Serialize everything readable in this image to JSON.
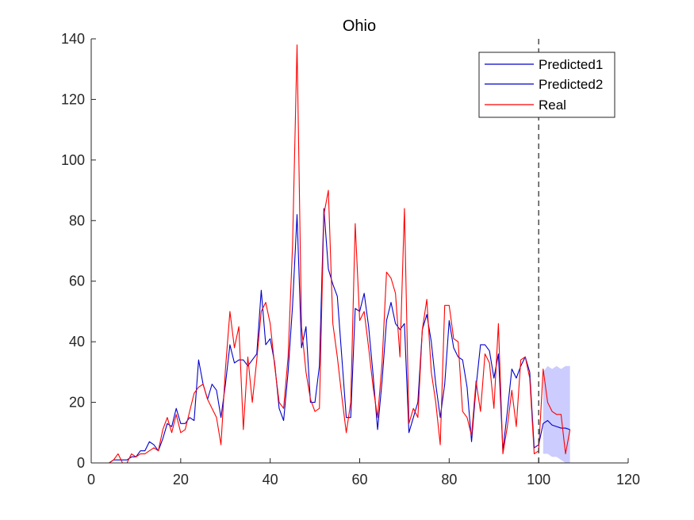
{
  "chart_data": {
    "type": "line",
    "title": "Ohio",
    "xlabel": "",
    "ylabel": "",
    "xlim": [
      0,
      120
    ],
    "ylim": [
      0,
      140
    ],
    "xticks": [
      "0",
      "20",
      "40",
      "60",
      "80",
      "100",
      "120"
    ],
    "yticks": [
      "0",
      "20",
      "40",
      "60",
      "80",
      "100",
      "120",
      "140"
    ],
    "x_tick_values": [
      0,
      20,
      40,
      60,
      80,
      100,
      120
    ],
    "y_tick_values": [
      0,
      20,
      40,
      60,
      80,
      100,
      120,
      140
    ],
    "grid": false,
    "legend_position": "top-right",
    "forecast_start_x": 100,
    "series": [
      {
        "name": "Predicted1",
        "color": "#0000cc",
        "x": [
          100,
          101,
          102,
          103,
          104,
          105,
          106,
          107
        ],
        "values": [
          6,
          13,
          14,
          12.5,
          12,
          11.5,
          11.5,
          11
        ]
      },
      {
        "name": "Predicted2",
        "color": "#0000cc",
        "x": [
          1,
          2,
          3,
          4,
          5,
          6,
          7,
          8,
          9,
          10,
          11,
          12,
          13,
          14,
          15,
          16,
          17,
          18,
          19,
          20,
          21,
          22,
          23,
          24,
          25,
          26,
          27,
          28,
          29,
          30,
          31,
          32,
          33,
          34,
          35,
          36,
          37,
          38,
          39,
          40,
          41,
          42,
          43,
          44,
          45,
          46,
          47,
          48,
          49,
          50,
          51,
          52,
          53,
          54,
          55,
          56,
          57,
          58,
          59,
          60,
          61,
          62,
          63,
          64,
          65,
          66,
          67,
          68,
          69,
          70,
          71,
          72,
          73,
          74,
          75,
          76,
          77,
          78,
          79,
          80,
          81,
          82,
          83,
          84,
          85,
          86,
          87,
          88,
          89,
          90,
          91,
          92,
          93,
          94,
          95,
          96,
          97,
          98,
          99,
          100
        ],
        "values": [
          0,
          0,
          0,
          0,
          1,
          1,
          1,
          1,
          2,
          2,
          4,
          4,
          7,
          6,
          4,
          8,
          13,
          12,
          18,
          13,
          13,
          15,
          14,
          34,
          26,
          21,
          26,
          24,
          15,
          26,
          39,
          33,
          34,
          34,
          32,
          34,
          36,
          57,
          39,
          41,
          33,
          18,
          14,
          30,
          52,
          82,
          38,
          45,
          20,
          20,
          32,
          84,
          64,
          59,
          55,
          35,
          15,
          15,
          51,
          50,
          56,
          45,
          29,
          11,
          27,
          47,
          53,
          46,
          44,
          46,
          10,
          15,
          20,
          44,
          49,
          40,
          26,
          15,
          26,
          47,
          38,
          35,
          34,
          25,
          7,
          25,
          39,
          39,
          37,
          28,
          36,
          4,
          17,
          31,
          28,
          32,
          35,
          30,
          5,
          6
        ]
      },
      {
        "name": "Real",
        "color": "#ff0000",
        "x": [
          1,
          2,
          3,
          4,
          5,
          6,
          7,
          8,
          9,
          10,
          11,
          12,
          13,
          14,
          15,
          16,
          17,
          18,
          19,
          20,
          21,
          22,
          23,
          24,
          25,
          26,
          27,
          28,
          29,
          30,
          31,
          32,
          33,
          34,
          35,
          36,
          37,
          38,
          39,
          40,
          41,
          42,
          43,
          44,
          45,
          46,
          47,
          48,
          49,
          50,
          51,
          52,
          53,
          54,
          55,
          56,
          57,
          58,
          59,
          60,
          61,
          62,
          63,
          64,
          65,
          66,
          67,
          68,
          69,
          70,
          71,
          72,
          73,
          74,
          75,
          76,
          77,
          78,
          79,
          80,
          81,
          82,
          83,
          84,
          85,
          86,
          87,
          88,
          89,
          90,
          91,
          92,
          93,
          94,
          95,
          96,
          97,
          98,
          99,
          100,
          101,
          102,
          103,
          104,
          105,
          106,
          107
        ],
        "values": [
          0,
          0,
          0,
          0,
          1,
          3,
          0,
          0,
          3,
          2,
          3,
          3,
          4,
          5,
          4,
          11,
          15,
          10,
          16,
          10,
          11,
          17,
          23,
          25,
          26,
          21,
          18,
          15,
          6,
          31,
          50,
          38,
          45,
          11,
          35,
          20,
          34,
          50,
          53,
          46,
          32,
          20,
          18,
          35,
          72,
          138,
          45,
          30,
          21,
          17,
          18,
          82,
          90,
          46,
          35,
          22,
          10,
          20,
          79,
          47,
          50,
          38,
          25,
          15,
          33,
          63,
          61,
          56,
          35,
          84,
          13,
          18,
          15,
          44,
          54,
          30,
          20,
          6,
          52,
          52,
          41,
          40,
          17,
          15,
          9,
          27,
          17,
          36,
          33,
          18,
          46,
          3,
          12,
          24,
          12,
          34,
          35,
          28,
          3,
          4,
          31,
          20,
          17,
          16,
          16,
          3,
          11
        ]
      },
      {
        "name": "",
        "type": "band",
        "color": "#ccccff",
        "x": [
          101,
          102,
          103,
          104,
          105,
          106,
          107
        ],
        "upper": [
          30,
          32,
          31,
          32,
          31,
          32,
          32
        ],
        "lower": [
          3,
          3,
          2,
          2,
          1,
          0,
          0
        ]
      }
    ]
  }
}
